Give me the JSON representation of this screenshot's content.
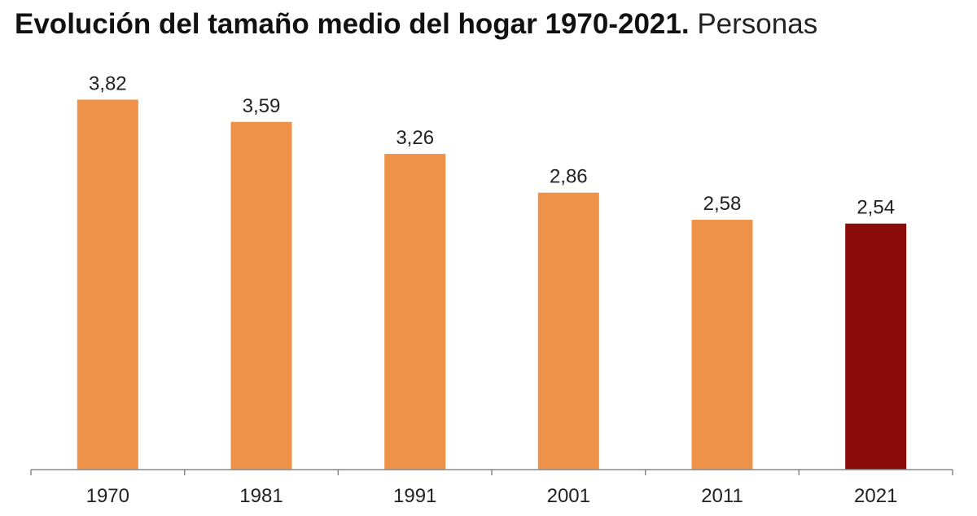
{
  "chart_data": {
    "type": "bar",
    "title": "Evolución del tamaño medio del hogar 1970-2021.",
    "subtitle": "Personas",
    "categories": [
      "1970",
      "1981",
      "1991",
      "2001",
      "2011",
      "2021"
    ],
    "values": [
      3.82,
      3.59,
      3.26,
      2.86,
      2.58,
      2.54
    ],
    "value_labels": [
      "3,82",
      "3,59",
      "3,26",
      "2,86",
      "2,58",
      "2,54"
    ],
    "xlabel": "",
    "ylabel": "",
    "ylim": [
      0,
      4.2
    ],
    "grid": false,
    "legend": "none",
    "colors": {
      "default_bar": "#ED9248",
      "highlight_bar": "#8B0A0A",
      "axis": "#888888"
    },
    "highlight_index": 5
  }
}
